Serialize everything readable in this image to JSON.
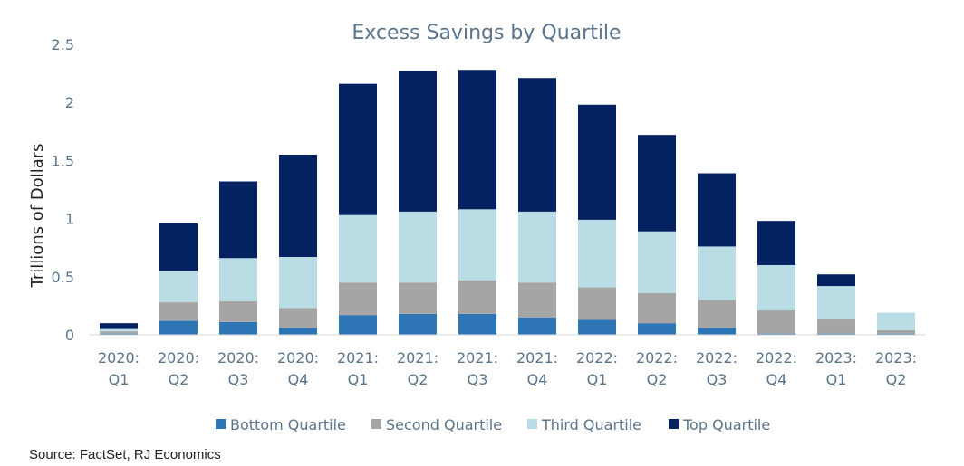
{
  "source": "Source: FactSet, RJ Economics",
  "chart_data": {
    "type": "bar",
    "stacked": true,
    "title": "Excess Savings by Quartile",
    "xlabel": "",
    "ylabel": "Trillions of Dollars",
    "ylim": [
      0,
      2.5
    ],
    "yticks": [
      "0",
      "0.5",
      "1",
      "1.5",
      "2",
      "2.5"
    ],
    "ytick_values": [
      0,
      0.5,
      1,
      1.5,
      2,
      2.5
    ],
    "grid": false,
    "legend_position": "bottom",
    "categories": [
      [
        "2020:",
        "Q1"
      ],
      [
        "2020:",
        "Q2"
      ],
      [
        "2020:",
        "Q3"
      ],
      [
        "2020:",
        "Q4"
      ],
      [
        "2021:",
        "Q1"
      ],
      [
        "2021:",
        "Q2"
      ],
      [
        "2021:",
        "Q3"
      ],
      [
        "2021:",
        "Q4"
      ],
      [
        "2022:",
        "Q1"
      ],
      [
        "2022:",
        "Q2"
      ],
      [
        "2022:",
        "Q3"
      ],
      [
        "2022:",
        "Q4"
      ],
      [
        "2023:",
        "Q1"
      ],
      [
        "2023:",
        "Q2"
      ]
    ],
    "series": [
      {
        "name": "Bottom Quartile",
        "color": "#2e75b6",
        "values": [
          0.01,
          0.12,
          0.11,
          0.06,
          0.17,
          0.18,
          0.18,
          0.15,
          0.13,
          0.1,
          0.06,
          0.01,
          0.01,
          0.01
        ]
      },
      {
        "name": "Second Quartile",
        "color": "#a5a5a5",
        "values": [
          0.02,
          0.16,
          0.18,
          0.17,
          0.28,
          0.27,
          0.29,
          0.3,
          0.28,
          0.26,
          0.24,
          0.2,
          0.13,
          0.03
        ]
      },
      {
        "name": "Third Quartile",
        "color": "#b8dde4",
        "values": [
          0.02,
          0.27,
          0.37,
          0.44,
          0.58,
          0.61,
          0.61,
          0.61,
          0.58,
          0.53,
          0.46,
          0.39,
          0.28,
          0.15
        ]
      },
      {
        "name": "Top Quartile",
        "color": "#042161",
        "values": [
          0.05,
          0.41,
          0.66,
          0.88,
          1.13,
          1.21,
          1.2,
          1.15,
          0.99,
          0.83,
          0.63,
          0.38,
          0.1,
          0.0
        ]
      }
    ]
  }
}
